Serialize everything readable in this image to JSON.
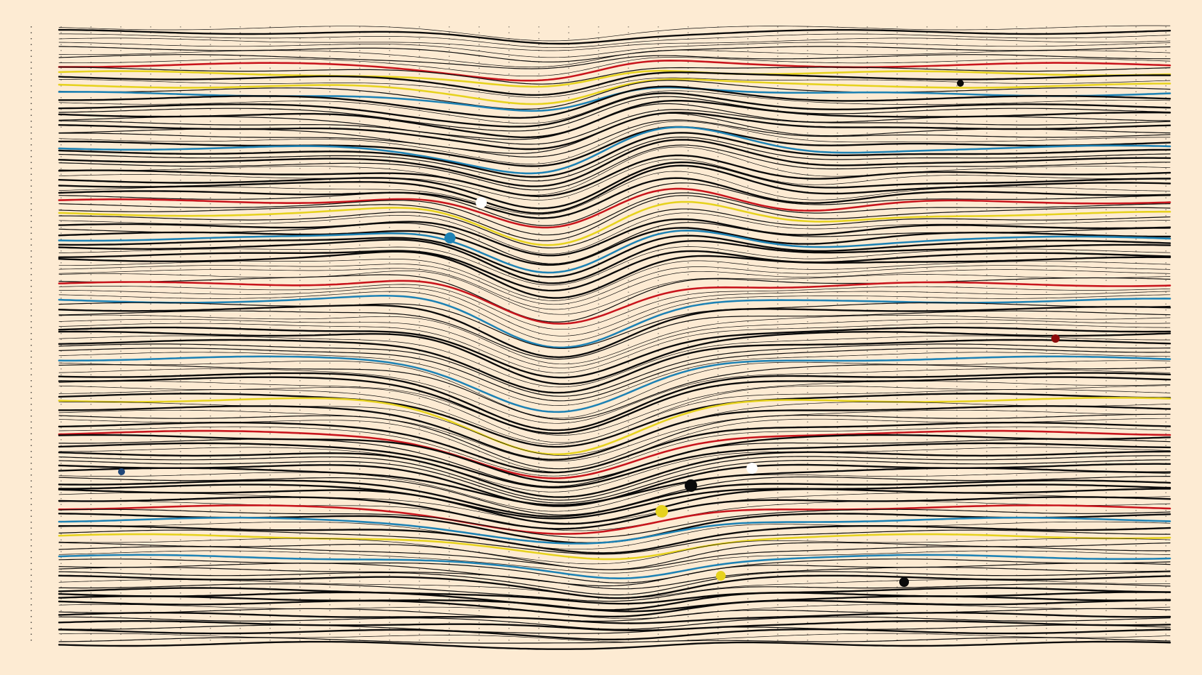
{
  "artwork": {
    "background": "#fdebd3",
    "palette": {
      "black": "#0a0a0a",
      "red": "#c8141c",
      "yellow": "#e6d21e",
      "blue": "#1e82b4",
      "dark_red": "#8c0a0a",
      "navy": "#1e4678",
      "white": "#ffffff"
    }
  }
}
